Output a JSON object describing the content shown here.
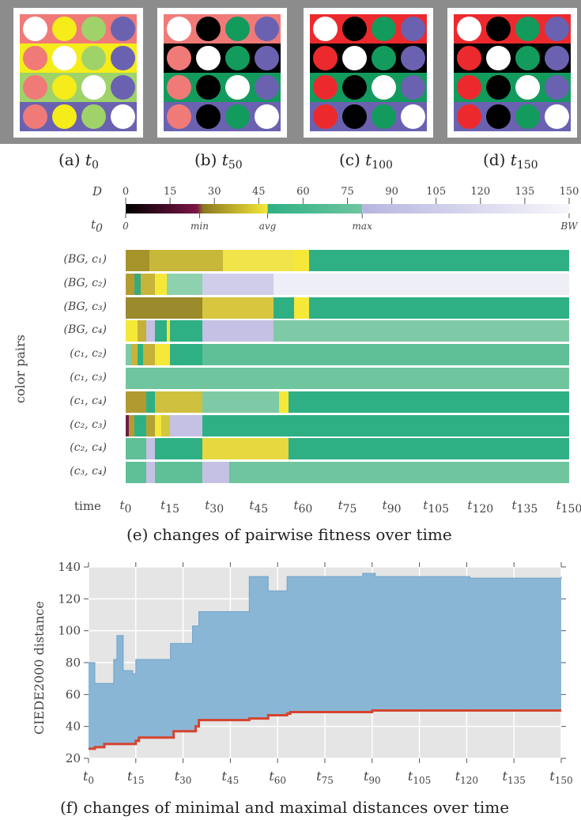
{
  "panels": [
    {
      "caption_letter": "(a)",
      "caption_var": "t",
      "caption_sub": "0",
      "bands": [
        "#f07a78",
        "#f5ec1a",
        "#9fd36a",
        "#6a62b0"
      ],
      "dots": [
        [
          "#ffffff",
          "#f5ec1a",
          "#9fd36a",
          "#6a62b0"
        ],
        [
          "#f07a78",
          "#ffffff",
          "#9fd36a",
          "#6a62b0"
        ],
        [
          "#f07a78",
          "#f5ec1a",
          "#ffffff",
          "#6a62b0"
        ],
        [
          "#f07a78",
          "#f5ec1a",
          "#9fd36a",
          "#ffffff"
        ]
      ]
    },
    {
      "caption_letter": "(b)",
      "caption_var": "t",
      "caption_sub": "50",
      "bands": [
        "#f07a78",
        "#000000",
        "#129b5c",
        "#6a62b0"
      ],
      "dots": [
        [
          "#ffffff",
          "#000000",
          "#129b5c",
          "#6a62b0"
        ],
        [
          "#f07a78",
          "#ffffff",
          "#129b5c",
          "#6a62b0"
        ],
        [
          "#f07a78",
          "#000000",
          "#ffffff",
          "#6a62b0"
        ],
        [
          "#f07a78",
          "#000000",
          "#129b5c",
          "#ffffff"
        ]
      ]
    },
    {
      "caption_letter": "(c)",
      "caption_var": "t",
      "caption_sub": "100",
      "bands": [
        "#ec2a2e",
        "#000000",
        "#129b5c",
        "#6a62b0"
      ],
      "dots": [
        [
          "#ffffff",
          "#000000",
          "#129b5c",
          "#6a62b0"
        ],
        [
          "#ec2a2e",
          "#ffffff",
          "#129b5c",
          "#6a62b0"
        ],
        [
          "#ec2a2e",
          "#000000",
          "#ffffff",
          "#6a62b0"
        ],
        [
          "#ec2a2e",
          "#000000",
          "#129b5c",
          "#ffffff"
        ]
      ]
    },
    {
      "caption_letter": "(d)",
      "caption_var": "t",
      "caption_sub": "150",
      "bands": [
        "#ec2a2e",
        "#000000",
        "#129b5c",
        "#6a62b0"
      ],
      "dots": [
        [
          "#ffffff",
          "#000000",
          "#129b5c",
          "#6a62b0"
        ],
        [
          "#ec2a2e",
          "#ffffff",
          "#129b5c",
          "#6a62b0"
        ],
        [
          "#ec2a2e",
          "#000000",
          "#ffffff",
          "#6a62b0"
        ],
        [
          "#ec2a2e",
          "#000000",
          "#129b5c",
          "#ffffff"
        ]
      ]
    }
  ],
  "legend": {
    "d_label": "D",
    "d_ticks": [
      "0",
      "15",
      "30",
      "45",
      "60",
      "75",
      "90",
      "105",
      "120",
      "135",
      "150"
    ],
    "t0_label": "t",
    "t0_sub": "0",
    "t0_marks": [
      {
        "text": "0",
        "value": 0
      },
      {
        "text": "min",
        "value": 25
      },
      {
        "text": "avg",
        "value": 48
      },
      {
        "text": "max",
        "value": 80
      },
      {
        "text": "BW",
        "value": 150
      }
    ]
  },
  "pairwise": {
    "ylabel": "color pairs",
    "xlabel": "time",
    "caption": "(e) changes of pairwise fitness over time",
    "time_ticks": [
      {
        "v": "t",
        "s": "0"
      },
      {
        "v": "t",
        "s": "15"
      },
      {
        "v": "t",
        "s": "30"
      },
      {
        "v": "t",
        "s": "45"
      },
      {
        "v": "t",
        "s": "60"
      },
      {
        "v": "t",
        "s": "75"
      },
      {
        "v": "t",
        "s": "90"
      },
      {
        "v": "t",
        "s": "105"
      },
      {
        "v": "t",
        "s": "120"
      },
      {
        "v": "t",
        "s": "135"
      },
      {
        "v": "t",
        "s": "150"
      }
    ],
    "rows": [
      {
        "label": "(BG, c₁)",
        "segments": [
          [
            0,
            8,
            "#a69329"
          ],
          [
            8,
            33,
            "#c8b83a"
          ],
          [
            33,
            57,
            "#f1e44a"
          ],
          [
            57,
            62,
            "#f5e838"
          ],
          [
            62,
            150,
            "#2fb084"
          ]
        ]
      },
      {
        "label": "(BG, c₂)",
        "segments": [
          [
            0,
            3,
            "#b49c30"
          ],
          [
            3,
            5,
            "#3aa97a"
          ],
          [
            5,
            10,
            "#c7b43a"
          ],
          [
            10,
            14,
            "#f5e838"
          ],
          [
            14,
            26,
            "#8ed1ae"
          ],
          [
            26,
            50,
            "#cfcde9"
          ],
          [
            50,
            150,
            "#eeeef7"
          ]
        ]
      },
      {
        "label": "(BG, c₃)",
        "segments": [
          [
            0,
            26,
            "#9b8a2c"
          ],
          [
            26,
            50,
            "#d8c63f"
          ],
          [
            50,
            57,
            "#2fb084"
          ],
          [
            57,
            62,
            "#f5e838"
          ],
          [
            62,
            150,
            "#2fb084"
          ]
        ]
      },
      {
        "label": "(BG, c₄)",
        "segments": [
          [
            0,
            4,
            "#f5e838"
          ],
          [
            4,
            7,
            "#c6b138"
          ],
          [
            7,
            10,
            "#c4c1e4"
          ],
          [
            10,
            14,
            "#2fb084"
          ],
          [
            14,
            15,
            "#f5e838"
          ],
          [
            15,
            26,
            "#2fb084"
          ],
          [
            26,
            50,
            "#c4c1e4"
          ],
          [
            50,
            150,
            "#7fcaa6"
          ]
        ]
      },
      {
        "label": "(c₁, c₂)",
        "segments": [
          [
            0,
            2,
            "#7fcaa6"
          ],
          [
            2,
            4,
            "#c8b43a"
          ],
          [
            4,
            6,
            "#2fb084"
          ],
          [
            6,
            10,
            "#c6b138"
          ],
          [
            10,
            14,
            "#f5e838"
          ],
          [
            14,
            15,
            "#f5e838"
          ],
          [
            15,
            26,
            "#2fb084"
          ],
          [
            26,
            150,
            "#5fbf96"
          ]
        ]
      },
      {
        "label": "(c₁, c₃)",
        "segments": [
          [
            0,
            150,
            "#6ec59e"
          ]
        ]
      },
      {
        "label": "(c₁, c₄)",
        "segments": [
          [
            0,
            7,
            "#b19a30"
          ],
          [
            7,
            10,
            "#2fb084"
          ],
          [
            10,
            26,
            "#cfc03e"
          ],
          [
            26,
            52,
            "#7fcaa6"
          ],
          [
            52,
            55,
            "#f5e838"
          ],
          [
            55,
            150,
            "#2fb084"
          ]
        ]
      },
      {
        "label": "(c₂, c₃)",
        "segments": [
          [
            0,
            1,
            "#6e1e45"
          ],
          [
            1,
            3,
            "#b49c30"
          ],
          [
            3,
            7,
            "#2fb084"
          ],
          [
            7,
            10,
            "#b3a235"
          ],
          [
            10,
            12,
            "#f5e838"
          ],
          [
            12,
            15,
            "#d2c83f"
          ],
          [
            15,
            26,
            "#c4c1e4"
          ],
          [
            26,
            150,
            "#2fb084"
          ]
        ]
      },
      {
        "label": "(c₂, c₄)",
        "segments": [
          [
            0,
            7,
            "#5fbf96"
          ],
          [
            7,
            10,
            "#c4c1e4"
          ],
          [
            10,
            26,
            "#2fb084"
          ],
          [
            26,
            55,
            "#e6d83e"
          ],
          [
            55,
            57,
            "#2fb084"
          ],
          [
            57,
            150,
            "#2fb084"
          ]
        ]
      },
      {
        "label": "(c₃, c₄)",
        "segments": [
          [
            0,
            7,
            "#5fbf96"
          ],
          [
            7,
            10,
            "#c4c1e4"
          ],
          [
            10,
            26,
            "#5fbf96"
          ],
          [
            26,
            35,
            "#c4c1e4"
          ],
          [
            35,
            150,
            "#6ec59e"
          ]
        ]
      }
    ]
  },
  "chart_data": {
    "type": "area",
    "ylabel": "CIEDE2000 distance",
    "caption": "(f) changes of minimal and maximal distances over time",
    "ylim": [
      20,
      140
    ],
    "xlim": [
      0,
      150
    ],
    "yticks": [
      "20",
      "40",
      "60",
      "80",
      "100",
      "120",
      "140"
    ],
    "grid": true,
    "series": [
      {
        "values": [
          [
            0,
            80
          ],
          [
            2,
            67
          ],
          [
            5,
            67
          ],
          [
            6,
            67
          ],
          [
            7,
            67
          ],
          [
            8,
            82
          ],
          [
            9,
            97
          ],
          [
            10,
            97
          ],
          [
            11,
            75
          ],
          [
            13,
            75
          ],
          [
            14,
            73
          ],
          [
            15,
            82
          ],
          [
            25,
            82
          ],
          [
            26,
            92
          ],
          [
            32,
            92
          ],
          [
            33,
            103
          ],
          [
            35,
            112
          ],
          [
            50,
            112
          ],
          [
            51,
            134
          ],
          [
            56,
            134
          ],
          [
            57,
            125
          ],
          [
            62,
            125
          ],
          [
            63,
            134
          ],
          [
            86,
            134
          ],
          [
            87,
            136
          ],
          [
            90,
            136
          ],
          [
            91,
            134
          ],
          [
            120,
            134
          ],
          [
            121,
            133
          ],
          [
            145,
            133
          ],
          [
            150,
            134
          ]
        ]
      },
      {
        "values": [
          [
            0,
            26
          ],
          [
            2,
            27
          ],
          [
            5,
            29
          ],
          [
            15,
            31
          ],
          [
            16,
            33
          ],
          [
            26,
            33
          ],
          [
            27,
            37
          ],
          [
            33,
            37
          ],
          [
            34,
            40
          ],
          [
            35,
            44
          ],
          [
            50,
            44
          ],
          [
            51,
            45
          ],
          [
            57,
            47
          ],
          [
            63,
            48
          ],
          [
            64,
            49
          ],
          [
            90,
            50
          ],
          [
            150,
            50
          ]
        ]
      }
    ],
    "colors": {
      "area": "#8ab6d6",
      "line": "#d4442f",
      "background": "#e5e5e5"
    }
  }
}
